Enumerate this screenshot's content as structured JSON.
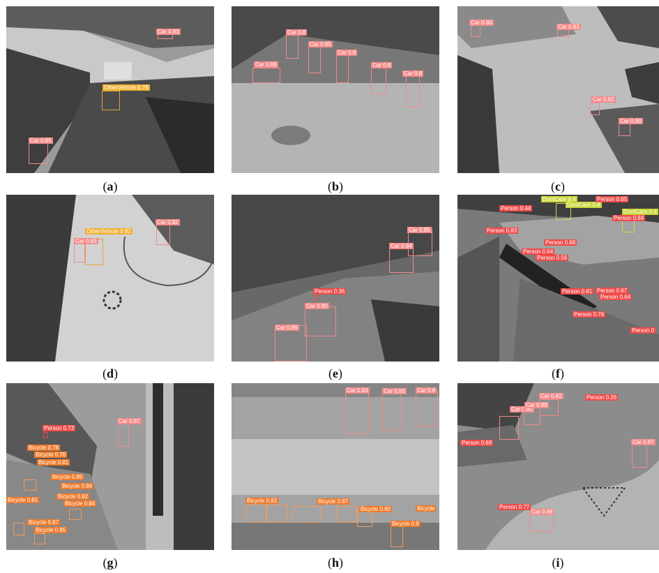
{
  "captions": {
    "a": {
      "open": "(",
      "letter": "a",
      "close": ")"
    },
    "b": {
      "open": "(",
      "letter": "b",
      "close": ")"
    },
    "c": {
      "open": "(",
      "letter": "c",
      "close": ")"
    },
    "d": {
      "open": "(",
      "letter": "d",
      "close": ")"
    },
    "e": {
      "open": "(",
      "letter": "e",
      "close": ")"
    },
    "f": {
      "open": "(",
      "letter": "f",
      "close": ")"
    },
    "g": {
      "open": "(",
      "letter": "g",
      "close": ")"
    },
    "h": {
      "open": "(",
      "letter": "h",
      "close": ")"
    },
    "i": {
      "open": "(",
      "letter": "i",
      "close": ")"
    }
  },
  "labels": {
    "a": [
      "Car 0.83",
      "OtherVehicle 0.78",
      "Car 0.85"
    ],
    "b": [
      "Car 0.88",
      "Car 0.8",
      "Car 0.85",
      "Car 0.8",
      "Car 0.8",
      "Car 0.8"
    ],
    "c": [
      "Car 0.80",
      "Car 0.83",
      "Car 0.82",
      "Car 0.80"
    ],
    "d": [
      "OtherVehicle 0.82",
      "Car 0.85",
      "Car 0.82"
    ],
    "e": [
      "Car 0.85",
      "Car 0.84",
      "Person 0.36",
      "Car 0.90",
      "Car 0.86"
    ],
    "f": [
      "DontCare 0.4",
      "DontCare 0.8",
      "Person 0.65",
      "DontCare 0.4",
      "Person 0.84",
      "Person 0.44",
      "Person 0.83",
      "Person 0.68",
      "Person 0.64",
      "Person 0.56",
      "Person 0.81",
      "Person 0.67",
      "Person 0.64",
      "Person 0.76",
      "Person 0"
    ],
    "g": [
      "Person 0.73",
      "Car 0.87",
      "Bicycle 0.78",
      "Bicycle 0.76",
      "Bicycle 0.81",
      "Bicycle 0.89",
      "Bicycle 0.84",
      "Bicycle 0.82",
      "Bicycle 0.84",
      "Bicycle 0.81",
      "Bicycle 0.87",
      "Bicycle 0.85"
    ],
    "h": [
      "Car 0.83",
      "Car 0.83",
      "Car 0.8",
      "Bicycle 0.83",
      "Bicycle 0.87",
      "Bicycle 0.80",
      "Bicycle 0.8",
      "Bicycle"
    ],
    "i": [
      "Car 0.80",
      "Car 0.88",
      "Car 0.82",
      "Person 0.26",
      "Person 0.69",
      "Car 0.87",
      "Person 0.77",
      "Car 0.86"
    ]
  }
}
